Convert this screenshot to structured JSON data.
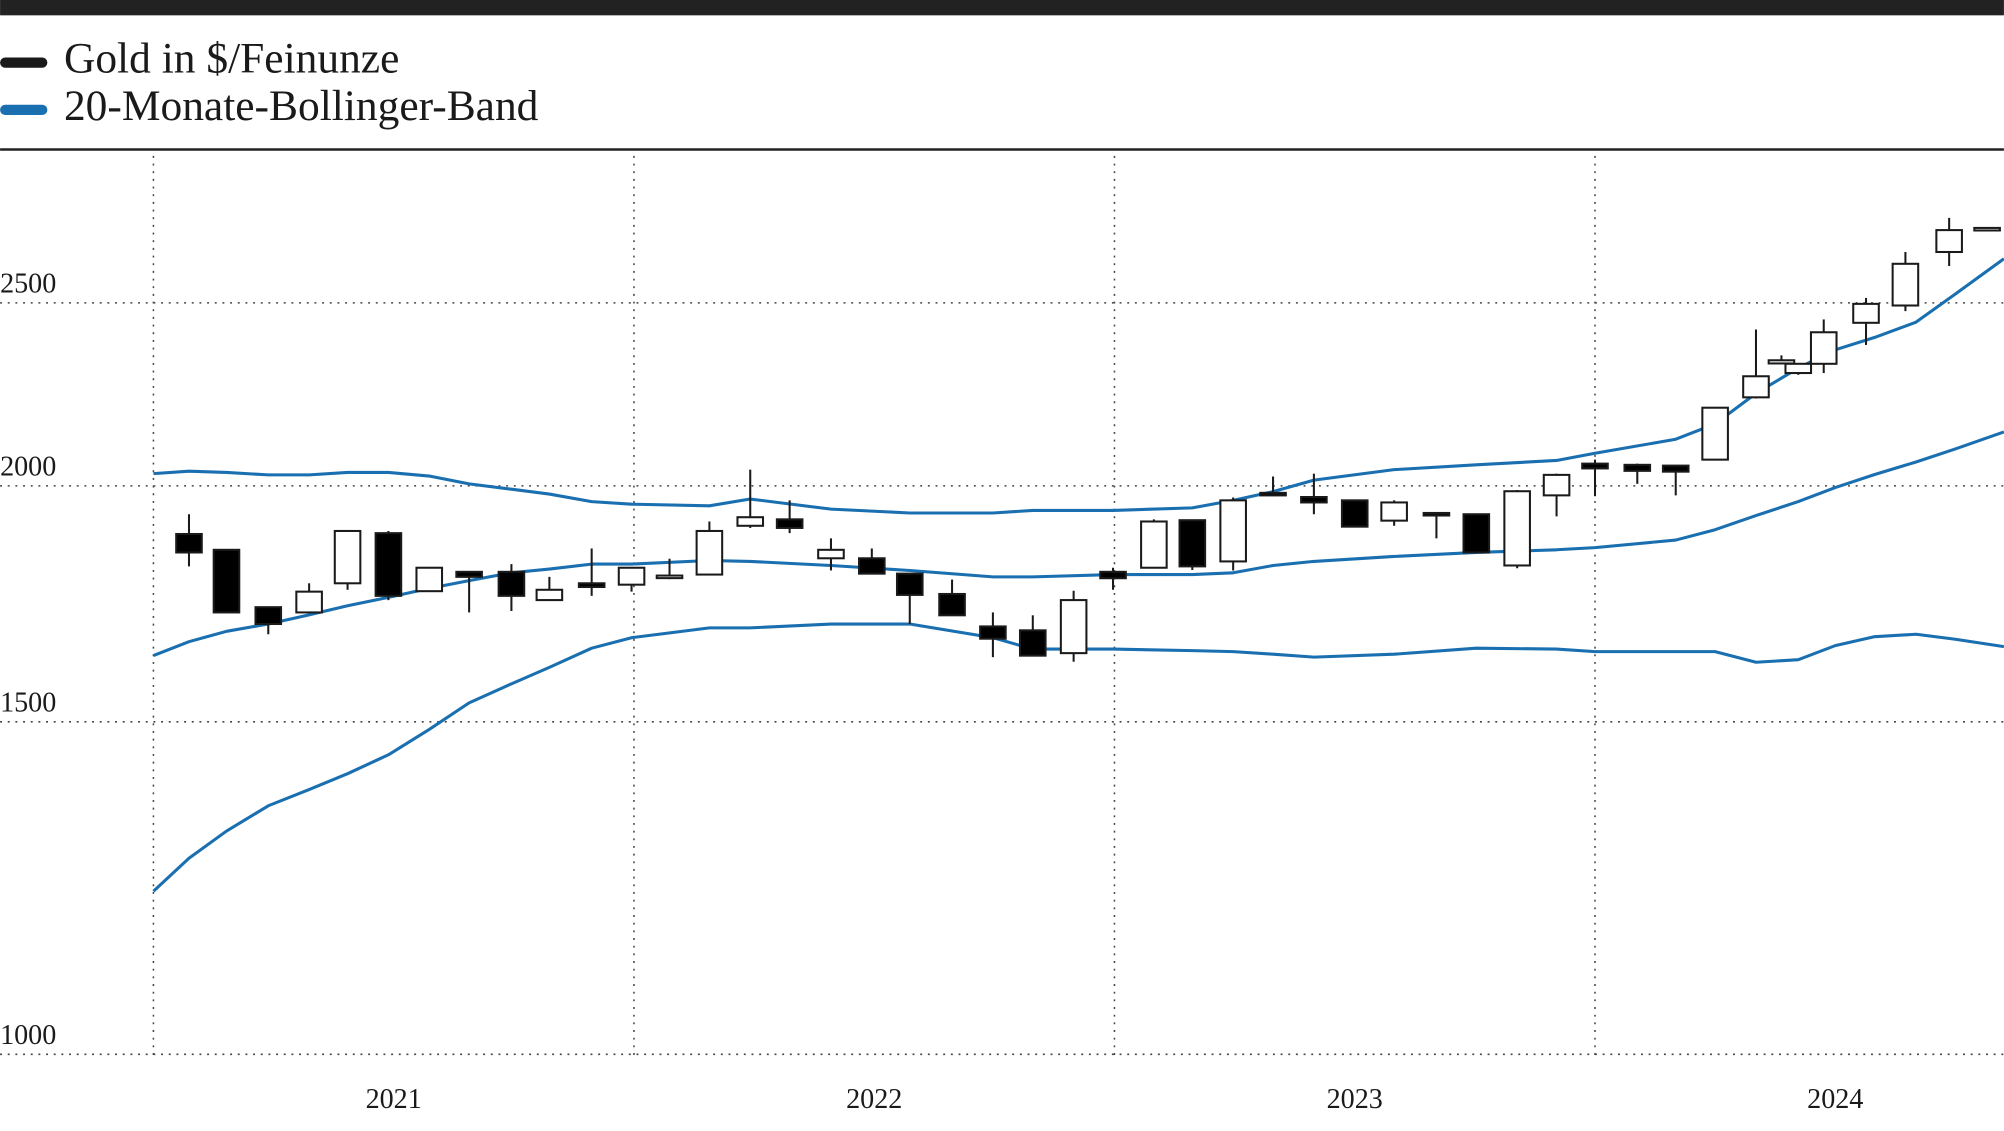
{
  "chart_data": {
    "type": "candlestick",
    "log_scale": true,
    "grid": true,
    "ylim": [
      1000,
      3000
    ],
    "yticks": [
      1000,
      1500,
      2000,
      2500
    ],
    "xlim": [
      2021,
      2024.851
    ],
    "xticks": [
      2021,
      2022,
      2023,
      2024
    ],
    "series": [
      {
        "name": "Gold in $/Feinunze",
        "type": "candlestick",
        "color": "#1a1a1a",
        "up_fill": "#ffffff",
        "down_fill": "#000000",
        "x": [
          2021.074,
          2021.152,
          2021.239,
          2021.324,
          2021.404,
          2021.489,
          2021.574,
          2021.657,
          2021.745,
          2021.824,
          2021.912,
          2021.995,
          2022.074,
          2022.157,
          2022.242,
          2022.324,
          2022.41,
          2022.495,
          2022.574,
          2022.662,
          2022.747,
          2022.83,
          2022.915,
          2022.997,
          2023.082,
          2023.162,
          2023.247,
          2023.33,
          2023.415,
          2023.5,
          2023.582,
          2023.67,
          2023.753,
          2023.838,
          2023.92,
          2024.0,
          2024.088,
          2024.168,
          2024.25,
          2024.335,
          2024.388,
          2024.423,
          2024.476,
          2024.564,
          2024.646,
          2024.737,
          2024.816
        ],
        "open": [
          1886,
          1850,
          1725,
          1714,
          1776,
          1888,
          1759,
          1801,
          1801,
          1740,
          1776,
          1773,
          1785,
          1795,
          1905,
          1920,
          1831,
          1831,
          1797,
          1753,
          1685,
          1677,
          1631,
          1801,
          1810,
          1918,
          1824,
          1980,
          1973,
          1965,
          1917,
          1932,
          1932,
          1815,
          1977,
          2055,
          2052,
          2050,
          2065,
          2228,
          2322,
          2295,
          2321,
          2440,
          2492,
          2660,
          2735
        ],
        "high": [
          1932,
          1850,
          1725,
          1776,
          1893,
          1893,
          1810,
          1801,
          1818,
          1790,
          1853,
          1810,
          1830,
          1915,
          2040,
          1965,
          1876,
          1853,
          1797,
          1784,
          1714,
          1708,
          1760,
          1810,
          1920,
          1918,
          1972,
          2023,
          2030,
          1965,
          1965,
          1932,
          1932,
          1990,
          2030,
          2065,
          2055,
          2050,
          2200,
          2420,
          2345,
          2321,
          2450,
          2515,
          2660,
          2773,
          2735
        ],
        "low": [
          1813,
          1714,
          1669,
          1714,
          1762,
          1740,
          1759,
          1714,
          1717,
          1740,
          1749,
          1758,
          1785,
          1795,
          1900,
          1888,
          1804,
          1797,
          1690,
          1708,
          1623,
          1626,
          1614,
          1762,
          1810,
          1805,
          1804,
          1975,
          1932,
          1903,
          1905,
          1876,
          1844,
          1809,
          1927,
          1975,
          2005,
          1977,
          2065,
          2225,
          2322,
          2290,
          2295,
          2375,
          2475,
          2615,
          2735
        ],
        "close": [
          1844,
          1714,
          1690,
          1758,
          1893,
          1749,
          1810,
          1790,
          1749,
          1762,
          1768,
          1810,
          1790,
          1893,
          1925,
          1900,
          1850,
          1797,
          1751,
          1708,
          1660,
          1626,
          1740,
          1787,
          1915,
          1813,
          1965,
          1975,
          1960,
          1903,
          1960,
          1929,
          1844,
          1987,
          2027,
          2043,
          2037,
          2035,
          2200,
          2286,
          2331,
          2321,
          2412,
          2497,
          2622,
          2732,
          2735
        ]
      },
      {
        "name": "20-Monate-Bollinger-Band",
        "type": "band",
        "color": "#1a6fb0",
        "x": [
          2021.0,
          2021.074,
          2021.152,
          2021.239,
          2021.324,
          2021.404,
          2021.489,
          2021.574,
          2021.657,
          2021.745,
          2021.824,
          2021.912,
          2021.995,
          2022.157,
          2022.242,
          2022.41,
          2022.574,
          2022.747,
          2022.83,
          2022.997,
          2023.162,
          2023.247,
          2023.33,
          2023.415,
          2023.582,
          2023.753,
          2023.92,
          2024.0,
          2024.168,
          2024.25,
          2024.335,
          2024.423,
          2024.5,
          2024.582,
          2024.668,
          2024.75,
          2024.851
        ],
        "upper": [
          2030,
          2036,
          2033,
          2027,
          2027,
          2033,
          2033,
          2024,
          2005,
          1992,
          1980,
          1962,
          1956,
          1952,
          1968,
          1944,
          1935,
          1935,
          1941,
          1941,
          1947,
          1965,
          1986,
          2014,
          2040,
          2052,
          2063,
          2081,
          2117,
          2157,
          2239,
          2309,
          2361,
          2397,
          2442,
          2527,
          2638
        ],
        "middle": [
          1626,
          1654,
          1675,
          1690,
          1709,
          1728,
          1746,
          1765,
          1782,
          1799,
          1807,
          1818,
          1818,
          1826,
          1824,
          1815,
          1804,
          1790,
          1790,
          1795,
          1795,
          1799,
          1815,
          1824,
          1835,
          1844,
          1850,
          1855,
          1872,
          1896,
          1929,
          1962,
          1996,
          2028,
          2059,
          2092,
          2136
        ],
        "lower": [
          1220,
          1270,
          1313,
          1354,
          1381,
          1408,
          1441,
          1486,
          1535,
          1571,
          1603,
          1641,
          1662,
          1682,
          1682,
          1690,
          1690,
          1662,
          1639,
          1639,
          1636,
          1634,
          1629,
          1623,
          1629,
          1641,
          1639,
          1634,
          1634,
          1634,
          1613,
          1618,
          1646,
          1664,
          1669,
          1659,
          1644
        ]
      }
    ]
  }
}
